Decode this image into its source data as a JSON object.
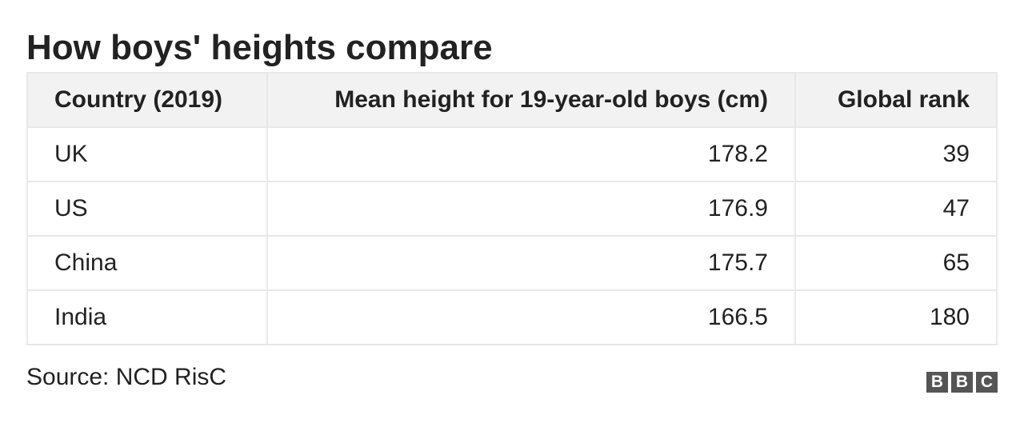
{
  "header": {
    "title": "How boys' heights compare"
  },
  "table": {
    "columns": [
      "Country (2019)",
      "Mean height for 19-year-old boys (cm)",
      "Global rank"
    ],
    "rows": [
      [
        "UK",
        178.2,
        39
      ],
      [
        "US",
        176.9,
        47
      ],
      [
        "China",
        175.7,
        65
      ],
      [
        "India",
        166.5,
        180
      ]
    ]
  },
  "footer": {
    "source": "Source: NCD RisC",
    "logo": [
      "B",
      "B",
      "C"
    ]
  }
}
